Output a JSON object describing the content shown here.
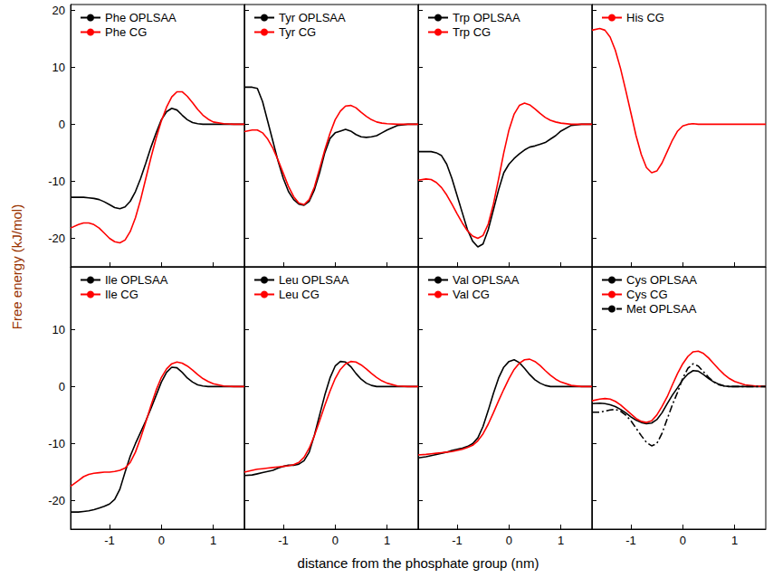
{
  "xlabel": "distance from the phosphate group (nm)",
  "ylabel": "Free energy (kJ/mol)",
  "chart_data": [
    {
      "type": "line",
      "xlim": [
        -1.75,
        1.6
      ],
      "ylim": [
        -25,
        21
      ],
      "xticks": [
        -1,
        0,
        1
      ],
      "yticks": [
        -20,
        -10,
        0,
        10,
        20
      ],
      "tick_labels": "y",
      "legend": "upper left",
      "grid": false,
      "x": [
        -1.75,
        -1.6,
        -1.5,
        -1.4,
        -1.3,
        -1.2,
        -1.1,
        -1.0,
        -0.9,
        -0.8,
        -0.7,
        -0.6,
        -0.5,
        -0.4,
        -0.3,
        -0.2,
        -0.1,
        0,
        0.1,
        0.2,
        0.3,
        0.4,
        0.5,
        0.6,
        0.7,
        0.8,
        0.9,
        1.0,
        1.2,
        1.4,
        1.6
      ],
      "series": [
        {
          "name": "Phe OPLSAA",
          "color": "#000000",
          "line_style": "solid",
          "values": [
            -12.8,
            -12.8,
            -12.8,
            -12.9,
            -13,
            -13.2,
            -13.6,
            -14.1,
            -14.6,
            -14.8,
            -14.5,
            -13.5,
            -11.8,
            -9.5,
            -6.8,
            -4,
            -1.5,
            0.8,
            2.2,
            2.8,
            2.5,
            1.6,
            0.8,
            0.3,
            0.1,
            0,
            0,
            0,
            0,
            0,
            0
          ]
        },
        {
          "name": "Phe CG",
          "color": "#ff0000",
          "line_style": "solid",
          "values": [
            -18.2,
            -17.6,
            -17.3,
            -17.3,
            -17.6,
            -18.2,
            -19.1,
            -20,
            -20.6,
            -20.8,
            -20.3,
            -18.8,
            -16.4,
            -13.2,
            -9.5,
            -5.8,
            -2.4,
            0.6,
            3,
            4.8,
            5.7,
            5.7,
            4.9,
            3.8,
            2.6,
            1.6,
            0.9,
            0.4,
            0.1,
            0,
            0
          ]
        }
      ]
    },
    {
      "type": "line",
      "xlim": [
        -1.75,
        1.6
      ],
      "ylim": [
        -25,
        21
      ],
      "xticks": [
        -1,
        0,
        1
      ],
      "yticks": [
        -20,
        -10,
        0,
        10,
        20
      ],
      "tick_labels": false,
      "legend": "upper left",
      "grid": false,
      "x": [
        -1.75,
        -1.6,
        -1.5,
        -1.4,
        -1.3,
        -1.2,
        -1.1,
        -1.0,
        -0.9,
        -0.8,
        -0.7,
        -0.6,
        -0.5,
        -0.4,
        -0.3,
        -0.2,
        -0.1,
        0,
        0.1,
        0.2,
        0.3,
        0.4,
        0.5,
        0.6,
        0.7,
        0.8,
        0.9,
        1.0,
        1.2,
        1.4,
        1.6
      ],
      "series": [
        {
          "name": "Tyr OPLSAA",
          "color": "#000000",
          "line_style": "solid",
          "values": [
            6.5,
            6.5,
            6.3,
            4,
            0.5,
            -3,
            -6.5,
            -9.5,
            -11.8,
            -13.2,
            -14,
            -14.2,
            -13.5,
            -11.5,
            -8.5,
            -5,
            -2.5,
            -1.5,
            -1.2,
            -0.9,
            -1.2,
            -1.8,
            -2.2,
            -2.3,
            -2.2,
            -2,
            -1.5,
            -1,
            -0.2,
            0,
            0
          ]
        },
        {
          "name": "Tyr CG",
          "color": "#ff0000",
          "line_style": "solid",
          "values": [
            -1.3,
            -1,
            -1,
            -1.5,
            -2.6,
            -4.2,
            -6.3,
            -8.6,
            -10.9,
            -12.7,
            -13.8,
            -14.1,
            -13.2,
            -11,
            -7.8,
            -4.5,
            -1.6,
            0.8,
            2.3,
            3.2,
            3.3,
            2.9,
            2.1,
            1.4,
            0.8,
            0.4,
            0.2,
            0.1,
            0,
            0,
            0
          ]
        }
      ]
    },
    {
      "type": "line",
      "xlim": [
        -1.75,
        1.6
      ],
      "ylim": [
        -25,
        21
      ],
      "xticks": [
        -1,
        0,
        1
      ],
      "yticks": [
        -20,
        -10,
        0,
        10,
        20
      ],
      "tick_labels": false,
      "legend": "upper left",
      "grid": false,
      "x": [
        -1.75,
        -1.6,
        -1.5,
        -1.4,
        -1.3,
        -1.2,
        -1.1,
        -1.0,
        -0.9,
        -0.8,
        -0.7,
        -0.6,
        -0.5,
        -0.4,
        -0.3,
        -0.2,
        -0.1,
        0,
        0.1,
        0.2,
        0.3,
        0.4,
        0.5,
        0.6,
        0.7,
        0.8,
        0.9,
        1.0,
        1.2,
        1.4,
        1.6
      ],
      "series": [
        {
          "name": "Trp OPLSAA",
          "color": "#000000",
          "line_style": "solid",
          "values": [
            -4.8,
            -4.8,
            -4.8,
            -5,
            -5.5,
            -7,
            -9.5,
            -12.5,
            -15.5,
            -18.5,
            -20.5,
            -21.5,
            -21,
            -18.5,
            -15,
            -11.5,
            -8.5,
            -7,
            -6,
            -5.2,
            -4.5,
            -4,
            -3.8,
            -3.5,
            -3.2,
            -2.6,
            -2,
            -1.2,
            -0.2,
            0,
            0
          ]
        },
        {
          "name": "Trp CG",
          "color": "#ff0000",
          "line_style": "solid",
          "values": [
            -9.8,
            -9.6,
            -9.7,
            -10.2,
            -11.1,
            -12.4,
            -14,
            -15.7,
            -17.3,
            -18.7,
            -19.6,
            -20,
            -19.5,
            -17.5,
            -14,
            -9.6,
            -5,
            -1,
            1.8,
            3.3,
            3.7,
            3.4,
            2.7,
            1.9,
            1.2,
            0.7,
            0.4,
            0.2,
            0,
            0,
            0
          ]
        }
      ]
    },
    {
      "type": "line",
      "xlim": [
        -1.75,
        1.6
      ],
      "ylim": [
        -25,
        21
      ],
      "xticks": [
        -1,
        0,
        1
      ],
      "yticks": [
        -20,
        -10,
        0,
        10,
        20
      ],
      "tick_labels": false,
      "legend": "upper left",
      "grid": false,
      "x": [
        -1.75,
        -1.6,
        -1.5,
        -1.4,
        -1.3,
        -1.2,
        -1.1,
        -1.0,
        -0.9,
        -0.8,
        -0.7,
        -0.6,
        -0.5,
        -0.4,
        -0.3,
        -0.2,
        -0.1,
        0,
        0.1,
        0.2,
        0.3,
        0.4,
        0.5,
        0.6,
        0.7,
        0.8,
        0.9,
        1.0,
        1.2,
        1.4,
        1.6
      ],
      "series": [
        {
          "name": "His CG",
          "color": "#ff0000",
          "line_style": "solid",
          "values": [
            16.5,
            16.8,
            16.5,
            15.3,
            13,
            9.8,
            6,
            2,
            -2,
            -5.3,
            -7.6,
            -8.5,
            -8.2,
            -6.8,
            -4.8,
            -2.8,
            -1.2,
            -0.3,
            0,
            0.1,
            0,
            0,
            0,
            0,
            0,
            0,
            0,
            0,
            0,
            0,
            0
          ]
        }
      ]
    },
    {
      "type": "line",
      "xlim": [
        -1.75,
        1.6
      ],
      "ylim": [
        -25,
        21
      ],
      "xticks": [
        -1,
        0,
        1
      ],
      "yticks": [
        -20,
        -10,
        0,
        10
      ],
      "tick_labels": true,
      "legend": "upper left",
      "grid": false,
      "x": [
        -1.75,
        -1.6,
        -1.5,
        -1.4,
        -1.3,
        -1.2,
        -1.1,
        -1.0,
        -0.9,
        -0.8,
        -0.7,
        -0.6,
        -0.5,
        -0.4,
        -0.3,
        -0.2,
        -0.1,
        0,
        0.1,
        0.2,
        0.3,
        0.4,
        0.5,
        0.6,
        0.7,
        0.8,
        0.9,
        1.0,
        1.2,
        1.4,
        1.6
      ],
      "series": [
        {
          "name": "Ile OPLSAA",
          "color": "#000000",
          "line_style": "solid",
          "values": [
            -22,
            -22,
            -21.9,
            -21.8,
            -21.6,
            -21.3,
            -21,
            -20.6,
            -19.8,
            -18,
            -15,
            -12.2,
            -10,
            -8,
            -6,
            -3.8,
            -1.5,
            0.8,
            2.5,
            3.4,
            3.3,
            2.5,
            1.5,
            0.8,
            0.3,
            0.1,
            0,
            0,
            0,
            0,
            0
          ]
        },
        {
          "name": "Ile CG",
          "color": "#ff0000",
          "line_style": "solid",
          "values": [
            -17.5,
            -16.5,
            -15.8,
            -15.4,
            -15.2,
            -15.1,
            -15,
            -15,
            -14.9,
            -14.7,
            -14.3,
            -13.3,
            -11.5,
            -9,
            -6.2,
            -3.3,
            -0.6,
            1.6,
            3.1,
            4,
            4.3,
            4.1,
            3.6,
            2.9,
            2.1,
            1.4,
            0.9,
            0.5,
            0.1,
            0,
            0
          ]
        }
      ]
    },
    {
      "type": "line",
      "xlim": [
        -1.75,
        1.6
      ],
      "ylim": [
        -25,
        21
      ],
      "xticks": [
        -1,
        0,
        1
      ],
      "yticks": [
        -20,
        -10,
        0,
        10
      ],
      "tick_labels": "x",
      "legend": "upper left",
      "grid": false,
      "x": [
        -1.75,
        -1.6,
        -1.5,
        -1.4,
        -1.3,
        -1.2,
        -1.1,
        -1.0,
        -0.9,
        -0.8,
        -0.7,
        -0.6,
        -0.5,
        -0.4,
        -0.3,
        -0.2,
        -0.1,
        0,
        0.1,
        0.2,
        0.3,
        0.4,
        0.5,
        0.6,
        0.7,
        0.8,
        0.9,
        1.0,
        1.2,
        1.4,
        1.6
      ],
      "series": [
        {
          "name": "Leu OPLSAA",
          "color": "#000000",
          "line_style": "solid",
          "values": [
            -15.6,
            -15.5,
            -15.3,
            -15.1,
            -14.9,
            -14.7,
            -14.3,
            -14,
            -13.8,
            -13.8,
            -13.6,
            -13,
            -11.5,
            -8.5,
            -5,
            -1.5,
            1.5,
            3.6,
            4.4,
            4.3,
            3.5,
            2.3,
            1.3,
            0.6,
            0.2,
            0,
            0,
            0,
            0,
            0,
            0
          ]
        },
        {
          "name": "Leu CG",
          "color": "#ff0000",
          "line_style": "solid",
          "values": [
            -15,
            -14.7,
            -14.5,
            -14.4,
            -14.3,
            -14.2,
            -14.1,
            -14,
            -13.9,
            -13.7,
            -13.3,
            -12.4,
            -10.8,
            -8.6,
            -6,
            -3.3,
            -0.8,
            1.4,
            3,
            4,
            4.4,
            4.3,
            3.8,
            3.1,
            2.3,
            1.6,
            1,
            0.6,
            0.1,
            0,
            0
          ]
        }
      ]
    },
    {
      "type": "line",
      "xlim": [
        -1.75,
        1.6
      ],
      "ylim": [
        -25,
        21
      ],
      "xticks": [
        -1,
        0,
        1
      ],
      "yticks": [
        -20,
        -10,
        0,
        10
      ],
      "tick_labels": "x",
      "legend": "upper left",
      "grid": false,
      "x": [
        -1.75,
        -1.6,
        -1.5,
        -1.4,
        -1.3,
        -1.2,
        -1.1,
        -1.0,
        -0.9,
        -0.8,
        -0.7,
        -0.6,
        -0.5,
        -0.4,
        -0.3,
        -0.2,
        -0.1,
        0,
        0.1,
        0.2,
        0.3,
        0.4,
        0.5,
        0.6,
        0.7,
        0.8,
        0.9,
        1.0,
        1.2,
        1.4,
        1.6
      ],
      "series": [
        {
          "name": "Val OPLSAA",
          "color": "#000000",
          "line_style": "solid",
          "values": [
            -12.5,
            -12.3,
            -12.1,
            -11.9,
            -11.7,
            -11.5,
            -11.2,
            -11,
            -10.8,
            -10.5,
            -10,
            -9,
            -7,
            -4.2,
            -1.2,
            1.5,
            3.4,
            4.4,
            4.7,
            4.2,
            3.2,
            2.1,
            1.2,
            0.6,
            0.2,
            0,
            0,
            0,
            0,
            0,
            0
          ]
        },
        {
          "name": "Val CG",
          "color": "#ff0000",
          "line_style": "solid",
          "values": [
            -12,
            -11.9,
            -11.8,
            -11.7,
            -11.6,
            -11.5,
            -11.4,
            -11.2,
            -11,
            -10.7,
            -10.3,
            -9.5,
            -8.3,
            -6.6,
            -4.6,
            -2.5,
            -0.5,
            1.4,
            3,
            4.1,
            4.7,
            4.8,
            4.4,
            3.7,
            2.8,
            2,
            1.3,
            0.8,
            0.2,
            0,
            0
          ]
        }
      ]
    },
    {
      "type": "line",
      "xlim": [
        -1.75,
        1.6
      ],
      "ylim": [
        -25,
        21
      ],
      "xticks": [
        -1,
        0,
        1
      ],
      "yticks": [
        -20,
        -10,
        0,
        10
      ],
      "tick_labels": "x",
      "legend": "upper left",
      "grid": false,
      "x": [
        -1.75,
        -1.6,
        -1.5,
        -1.4,
        -1.3,
        -1.2,
        -1.1,
        -1.0,
        -0.9,
        -0.8,
        -0.7,
        -0.6,
        -0.5,
        -0.4,
        -0.3,
        -0.2,
        -0.1,
        0,
        0.1,
        0.2,
        0.3,
        0.4,
        0.5,
        0.6,
        0.7,
        0.8,
        0.9,
        1.0,
        1.2,
        1.4,
        1.6
      ],
      "series": [
        {
          "name": "Cys OPLSAA",
          "color": "#000000",
          "line_style": "solid",
          "values": [
            -3,
            -2.9,
            -3,
            -3.2,
            -3.5,
            -4,
            -4.6,
            -5.3,
            -5.9,
            -6.3,
            -6.5,
            -6.4,
            -5.8,
            -4.6,
            -3,
            -1.5,
            -0.2,
            1.2,
            2.2,
            2.8,
            2.7,
            2.1,
            1.4,
            0.8,
            0.4,
            0.1,
            0,
            0,
            0,
            0,
            0
          ]
        },
        {
          "name": "Cys CG",
          "color": "#ff0000",
          "line_style": "solid",
          "values": [
            -2.5,
            -2.2,
            -2.1,
            -2.2,
            -2.6,
            -3.2,
            -4,
            -4.8,
            -5.6,
            -6.1,
            -6.3,
            -6,
            -5,
            -3.5,
            -1.8,
            0.3,
            2.3,
            4,
            5.3,
            6.1,
            6.2,
            5.8,
            5,
            4,
            3,
            2.1,
            1.4,
            0.9,
            0.3,
            0.1,
            0
          ]
        },
        {
          "name": "Met OPLSAA",
          "color": "#000000",
          "line_style": "dashdot",
          "values": [
            -4.5,
            -4.5,
            -4.3,
            -4.1,
            -4,
            -4.3,
            -5,
            -6,
            -7.3,
            -8.6,
            -9.8,
            -10.4,
            -10,
            -8.2,
            -5.7,
            -3.2,
            -1,
            1.5,
            3.2,
            4,
            3.6,
            2.6,
            1.6,
            0.8,
            0.3,
            0.1,
            0,
            0,
            0,
            0,
            0
          ]
        }
      ]
    }
  ]
}
